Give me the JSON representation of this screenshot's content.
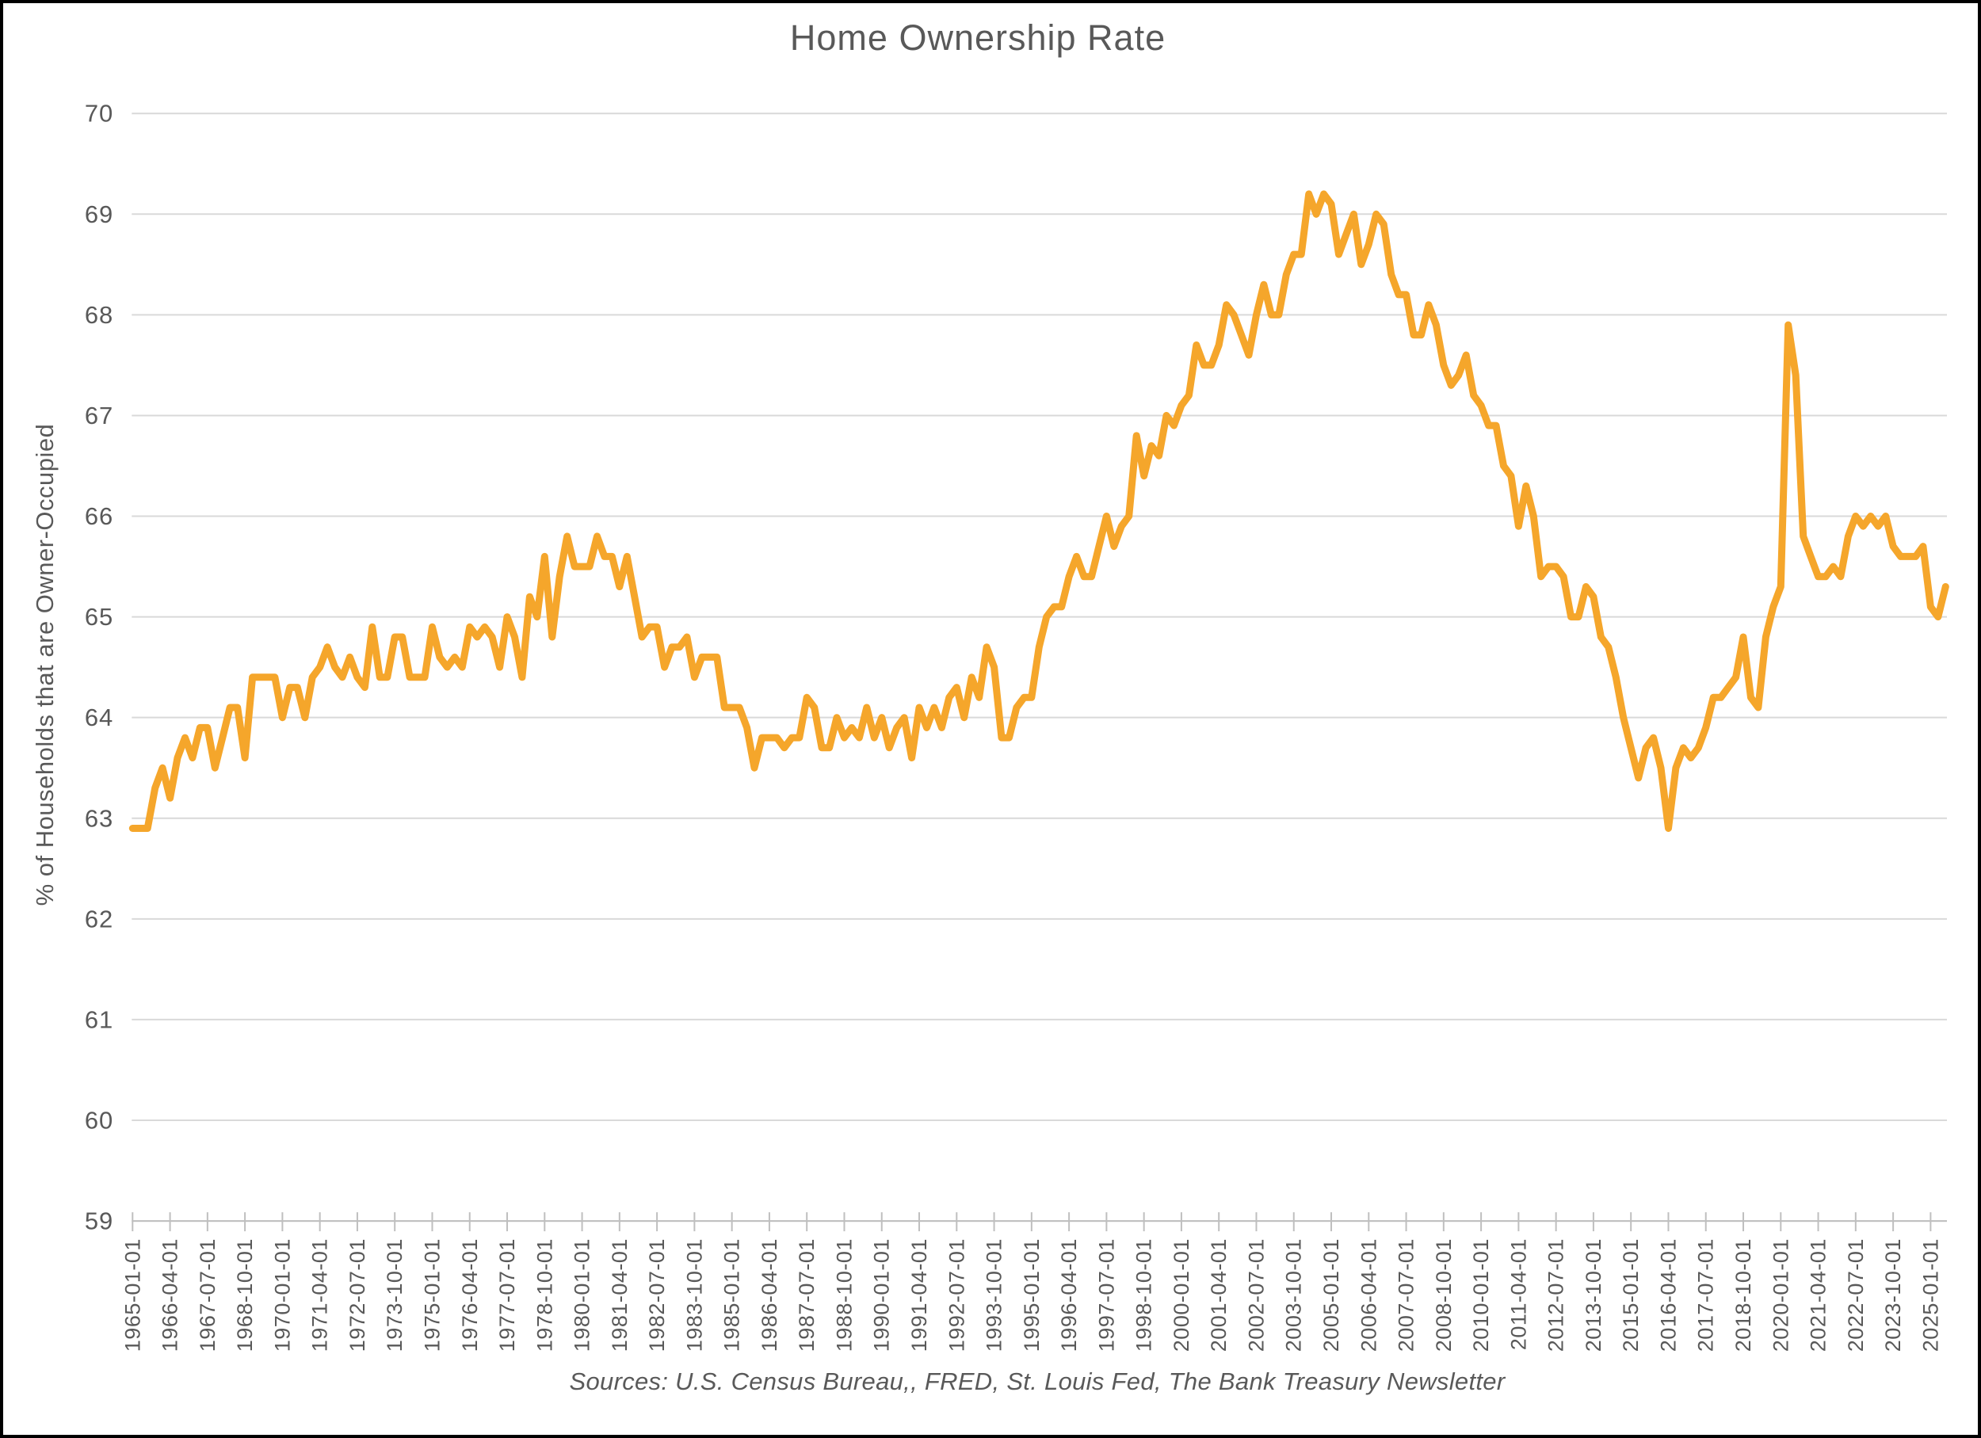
{
  "title": "Home Ownership Rate",
  "y_axis_title": "% of Households that are Owner-Occupied",
  "source_note": "Sources: U.S. Census Bureau,, FRED, St. Louis Fed, The Bank Treasury Newsletter",
  "colors": {
    "line": "#F5A62B",
    "grid": "#D9D9D9",
    "axis": "#BFBFBF",
    "text": "#595959",
    "border": "#000000",
    "background": "#FFFFFF"
  },
  "chart_data": {
    "type": "line",
    "title": "Home Ownership Rate",
    "xlabel": "",
    "ylabel": "% of Households that are Owner-Occupied",
    "ylim": [
      59,
      70
    ],
    "grid": "horizontal",
    "legend_position": "none",
    "frequency": "quarterly",
    "start_date": "1965-01-01",
    "end_date": "2025-07-01",
    "x_tick_interval_quarters": 5,
    "y_ticks": [
      59,
      60,
      61,
      62,
      63,
      64,
      65,
      66,
      67,
      68,
      69,
      70
    ],
    "x_tick_labels": [
      "1965-01-01",
      "1966-04-01",
      "1967-07-01",
      "1968-10-01",
      "1970-01-01",
      "1971-04-01",
      "1972-07-01",
      "1973-10-01",
      "1975-01-01",
      "1976-04-01",
      "1977-07-01",
      "1978-10-01",
      "1980-01-01",
      "1981-04-01",
      "1982-07-01",
      "1983-10-01",
      "1985-01-01",
      "1986-04-01",
      "1987-07-01",
      "1988-10-01",
      "1990-01-01",
      "1991-04-01",
      "1992-07-01",
      "1993-10-01",
      "1995-01-01",
      "1996-04-01",
      "1997-07-01",
      "1998-10-01",
      "2000-01-01",
      "2001-04-01",
      "2002-07-01",
      "2003-10-01",
      "2005-01-01",
      "2006-04-01",
      "2007-07-01",
      "2008-10-01",
      "2010-01-01",
      "2011-04-01",
      "2012-07-01",
      "2013-10-01",
      "2015-01-01",
      "2016-04-01",
      "2017-07-01",
      "2018-10-01",
      "2020-01-01",
      "2021-04-01",
      "2022-07-01",
      "2023-10-01",
      "2025-01-01"
    ],
    "series": [
      {
        "name": "Home Ownership Rate (% of households that are owner-occupied)",
        "values": [
          62.9,
          62.9,
          62.9,
          63.3,
          63.5,
          63.2,
          63.6,
          63.8,
          63.6,
          63.9,
          63.9,
          63.5,
          63.8,
          64.1,
          64.1,
          63.6,
          64.4,
          64.4,
          64.4,
          64.4,
          64.0,
          64.3,
          64.3,
          64.0,
          64.4,
          64.5,
          64.7,
          64.5,
          64.4,
          64.6,
          64.4,
          64.3,
          64.9,
          64.4,
          64.4,
          64.8,
          64.8,
          64.4,
          64.4,
          64.4,
          64.9,
          64.6,
          64.5,
          64.6,
          64.5,
          64.9,
          64.8,
          64.9,
          64.8,
          64.5,
          65.0,
          64.8,
          64.4,
          65.2,
          65.0,
          65.6,
          64.8,
          65.4,
          65.8,
          65.5,
          65.5,
          65.5,
          65.8,
          65.6,
          65.6,
          65.3,
          65.6,
          65.2,
          64.8,
          64.9,
          64.9,
          64.5,
          64.7,
          64.7,
          64.8,
          64.4,
          64.6,
          64.6,
          64.6,
          64.1,
          64.1,
          64.1,
          63.9,
          63.5,
          63.8,
          63.8,
          63.8,
          63.7,
          63.8,
          63.8,
          64.2,
          64.1,
          63.7,
          63.7,
          64.0,
          63.8,
          63.9,
          63.8,
          64.1,
          63.8,
          64.0,
          63.7,
          63.9,
          64.0,
          63.6,
          64.1,
          63.9,
          64.1,
          63.9,
          64.2,
          64.3,
          64.0,
          64.4,
          64.2,
          64.7,
          64.5,
          63.8,
          63.8,
          64.1,
          64.2,
          64.2,
          64.7,
          65.0,
          65.1,
          65.1,
          65.4,
          65.6,
          65.4,
          65.4,
          65.7,
          66.0,
          65.7,
          65.9,
          66.0,
          66.8,
          66.4,
          66.7,
          66.6,
          67.0,
          66.9,
          67.1,
          67.2,
          67.7,
          67.5,
          67.5,
          67.7,
          68.1,
          68.0,
          67.8,
          67.6,
          68.0,
          68.3,
          68.0,
          68.0,
          68.4,
          68.6,
          68.6,
          69.2,
          69.0,
          69.2,
          69.1,
          68.6,
          68.8,
          69.0,
          68.5,
          68.7,
          69.0,
          68.9,
          68.4,
          68.2,
          68.2,
          67.8,
          67.8,
          68.1,
          67.9,
          67.5,
          67.3,
          67.4,
          67.6,
          67.2,
          67.1,
          66.9,
          66.9,
          66.5,
          66.4,
          65.9,
          66.3,
          66.0,
          65.4,
          65.5,
          65.5,
          65.4,
          65.0,
          65.0,
          65.3,
          65.2,
          64.8,
          64.7,
          64.4,
          64.0,
          63.7,
          63.4,
          63.7,
          63.8,
          63.5,
          62.9,
          63.5,
          63.7,
          63.6,
          63.7,
          63.9,
          64.2,
          64.2,
          64.3,
          64.4,
          64.8,
          64.2,
          64.1,
          64.8,
          65.1,
          65.3,
          67.9,
          67.4,
          65.8,
          65.6,
          65.4,
          65.4,
          65.5,
          65.4,
          65.8,
          66.0,
          65.9,
          66.0,
          65.9,
          66.0,
          65.7,
          65.6,
          65.6,
          65.6,
          65.7,
          65.1,
          65.0,
          65.3
        ]
      }
    ]
  }
}
